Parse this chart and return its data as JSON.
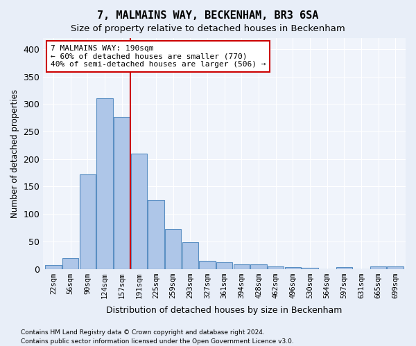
{
  "title": "7, MALMAINS WAY, BECKENHAM, BR3 6SA",
  "subtitle": "Size of property relative to detached houses in Beckenham",
  "xlabel": "Distribution of detached houses by size in Beckenham",
  "ylabel": "Number of detached properties",
  "bins": [
    "22sqm",
    "56sqm",
    "90sqm",
    "124sqm",
    "157sqm",
    "191sqm",
    "225sqm",
    "259sqm",
    "293sqm",
    "327sqm",
    "361sqm",
    "394sqm",
    "428sqm",
    "462sqm",
    "496sqm",
    "530sqm",
    "564sqm",
    "597sqm",
    "631sqm",
    "665sqm",
    "699sqm"
  ],
  "values": [
    7,
    20,
    172,
    310,
    277,
    210,
    125,
    73,
    48,
    14,
    12,
    8,
    8,
    5,
    3,
    2,
    0,
    3,
    0,
    4,
    4
  ],
  "bar_color": "#aec6e8",
  "bar_edge_color": "#5a8fc3",
  "vline_color": "#cc0000",
  "vline_pos": 4.5,
  "annotation_text": "7 MALMAINS WAY: 190sqm\n← 60% of detached houses are smaller (770)\n40% of semi-detached houses are larger (506) →",
  "annotation_box_color": "#ffffff",
  "annotation_box_edge": "#cc0000",
  "ylim": [
    0,
    420
  ],
  "yticks": [
    0,
    50,
    100,
    150,
    200,
    250,
    300,
    350,
    400
  ],
  "footer1": "Contains HM Land Registry data © Crown copyright and database right 2024.",
  "footer2": "Contains public sector information licensed under the Open Government Licence v3.0.",
  "bg_color": "#e8eef8",
  "plot_bg_color": "#f0f4fb"
}
